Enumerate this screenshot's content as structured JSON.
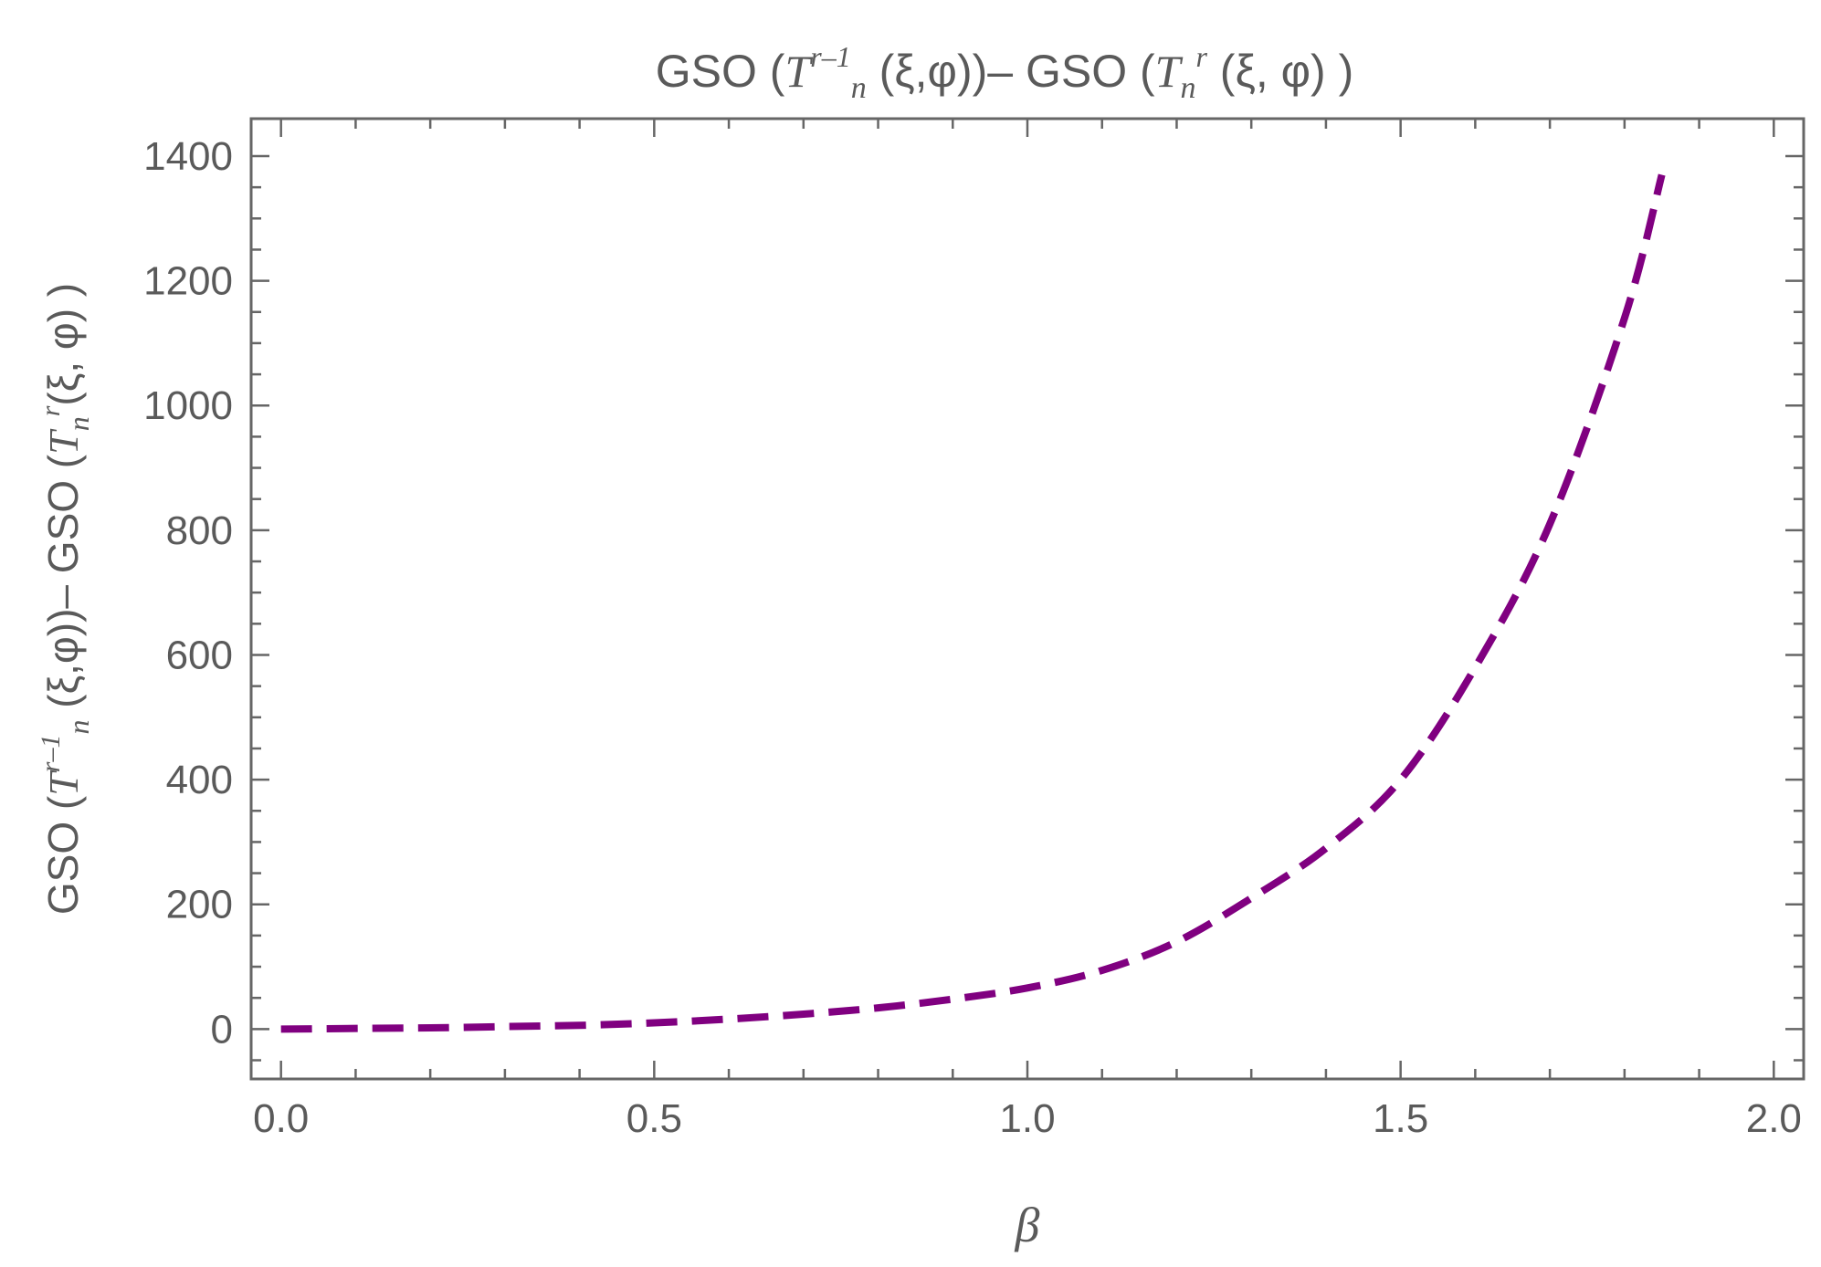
{
  "chart_data": {
    "type": "line",
    "title": {
      "p1": "GSO (",
      "p2": "T",
      "p3": "r–1",
      "p4": "n",
      "p5": " (ξ,φ))– GSO (",
      "p6": "T",
      "p7": "n",
      "p8": "r",
      "p9": " (ξ, φ) )"
    },
    "xlabel": "β",
    "ylabel": {
      "p1": "GSO (",
      "p2": "T",
      "p3": "r–1",
      "p4": "n",
      "p5": " (ξ,φ))– GSO (",
      "p6": "T",
      "p7": "n",
      "p8": "r",
      "p9": "(ξ, φ) )"
    },
    "xlim": [
      -0.04,
      2.04
    ],
    "ylim": [
      -80,
      1460
    ],
    "x_ticks": [
      0.0,
      0.5,
      1.0,
      1.5,
      2.0
    ],
    "x_tick_labels": [
      "0.0",
      "0.5",
      "1.0",
      "1.5",
      "2.0"
    ],
    "x_minor_step": 0.1,
    "y_ticks": [
      0,
      200,
      400,
      600,
      800,
      1000,
      1200,
      1400
    ],
    "y_tick_labels": [
      "0",
      "200",
      "400",
      "600",
      "800",
      "1000",
      "1200",
      "1400"
    ],
    "y_minor_step": 50,
    "series": [
      {
        "color": "#800080",
        "style": "dashed",
        "x": [
          0.0,
          0.2,
          0.3,
          0.4,
          0.5,
          0.6,
          0.7,
          0.8,
          0.9,
          1.0,
          1.1,
          1.2,
          1.3,
          1.4,
          1.5,
          1.6,
          1.7,
          1.8,
          1.85
        ],
        "y": [
          0,
          2,
          4,
          6,
          10,
          16,
          24,
          34,
          48,
          66,
          94,
          140,
          210,
          290,
          400,
          580,
          810,
          1140,
          1370
        ]
      }
    ]
  }
}
